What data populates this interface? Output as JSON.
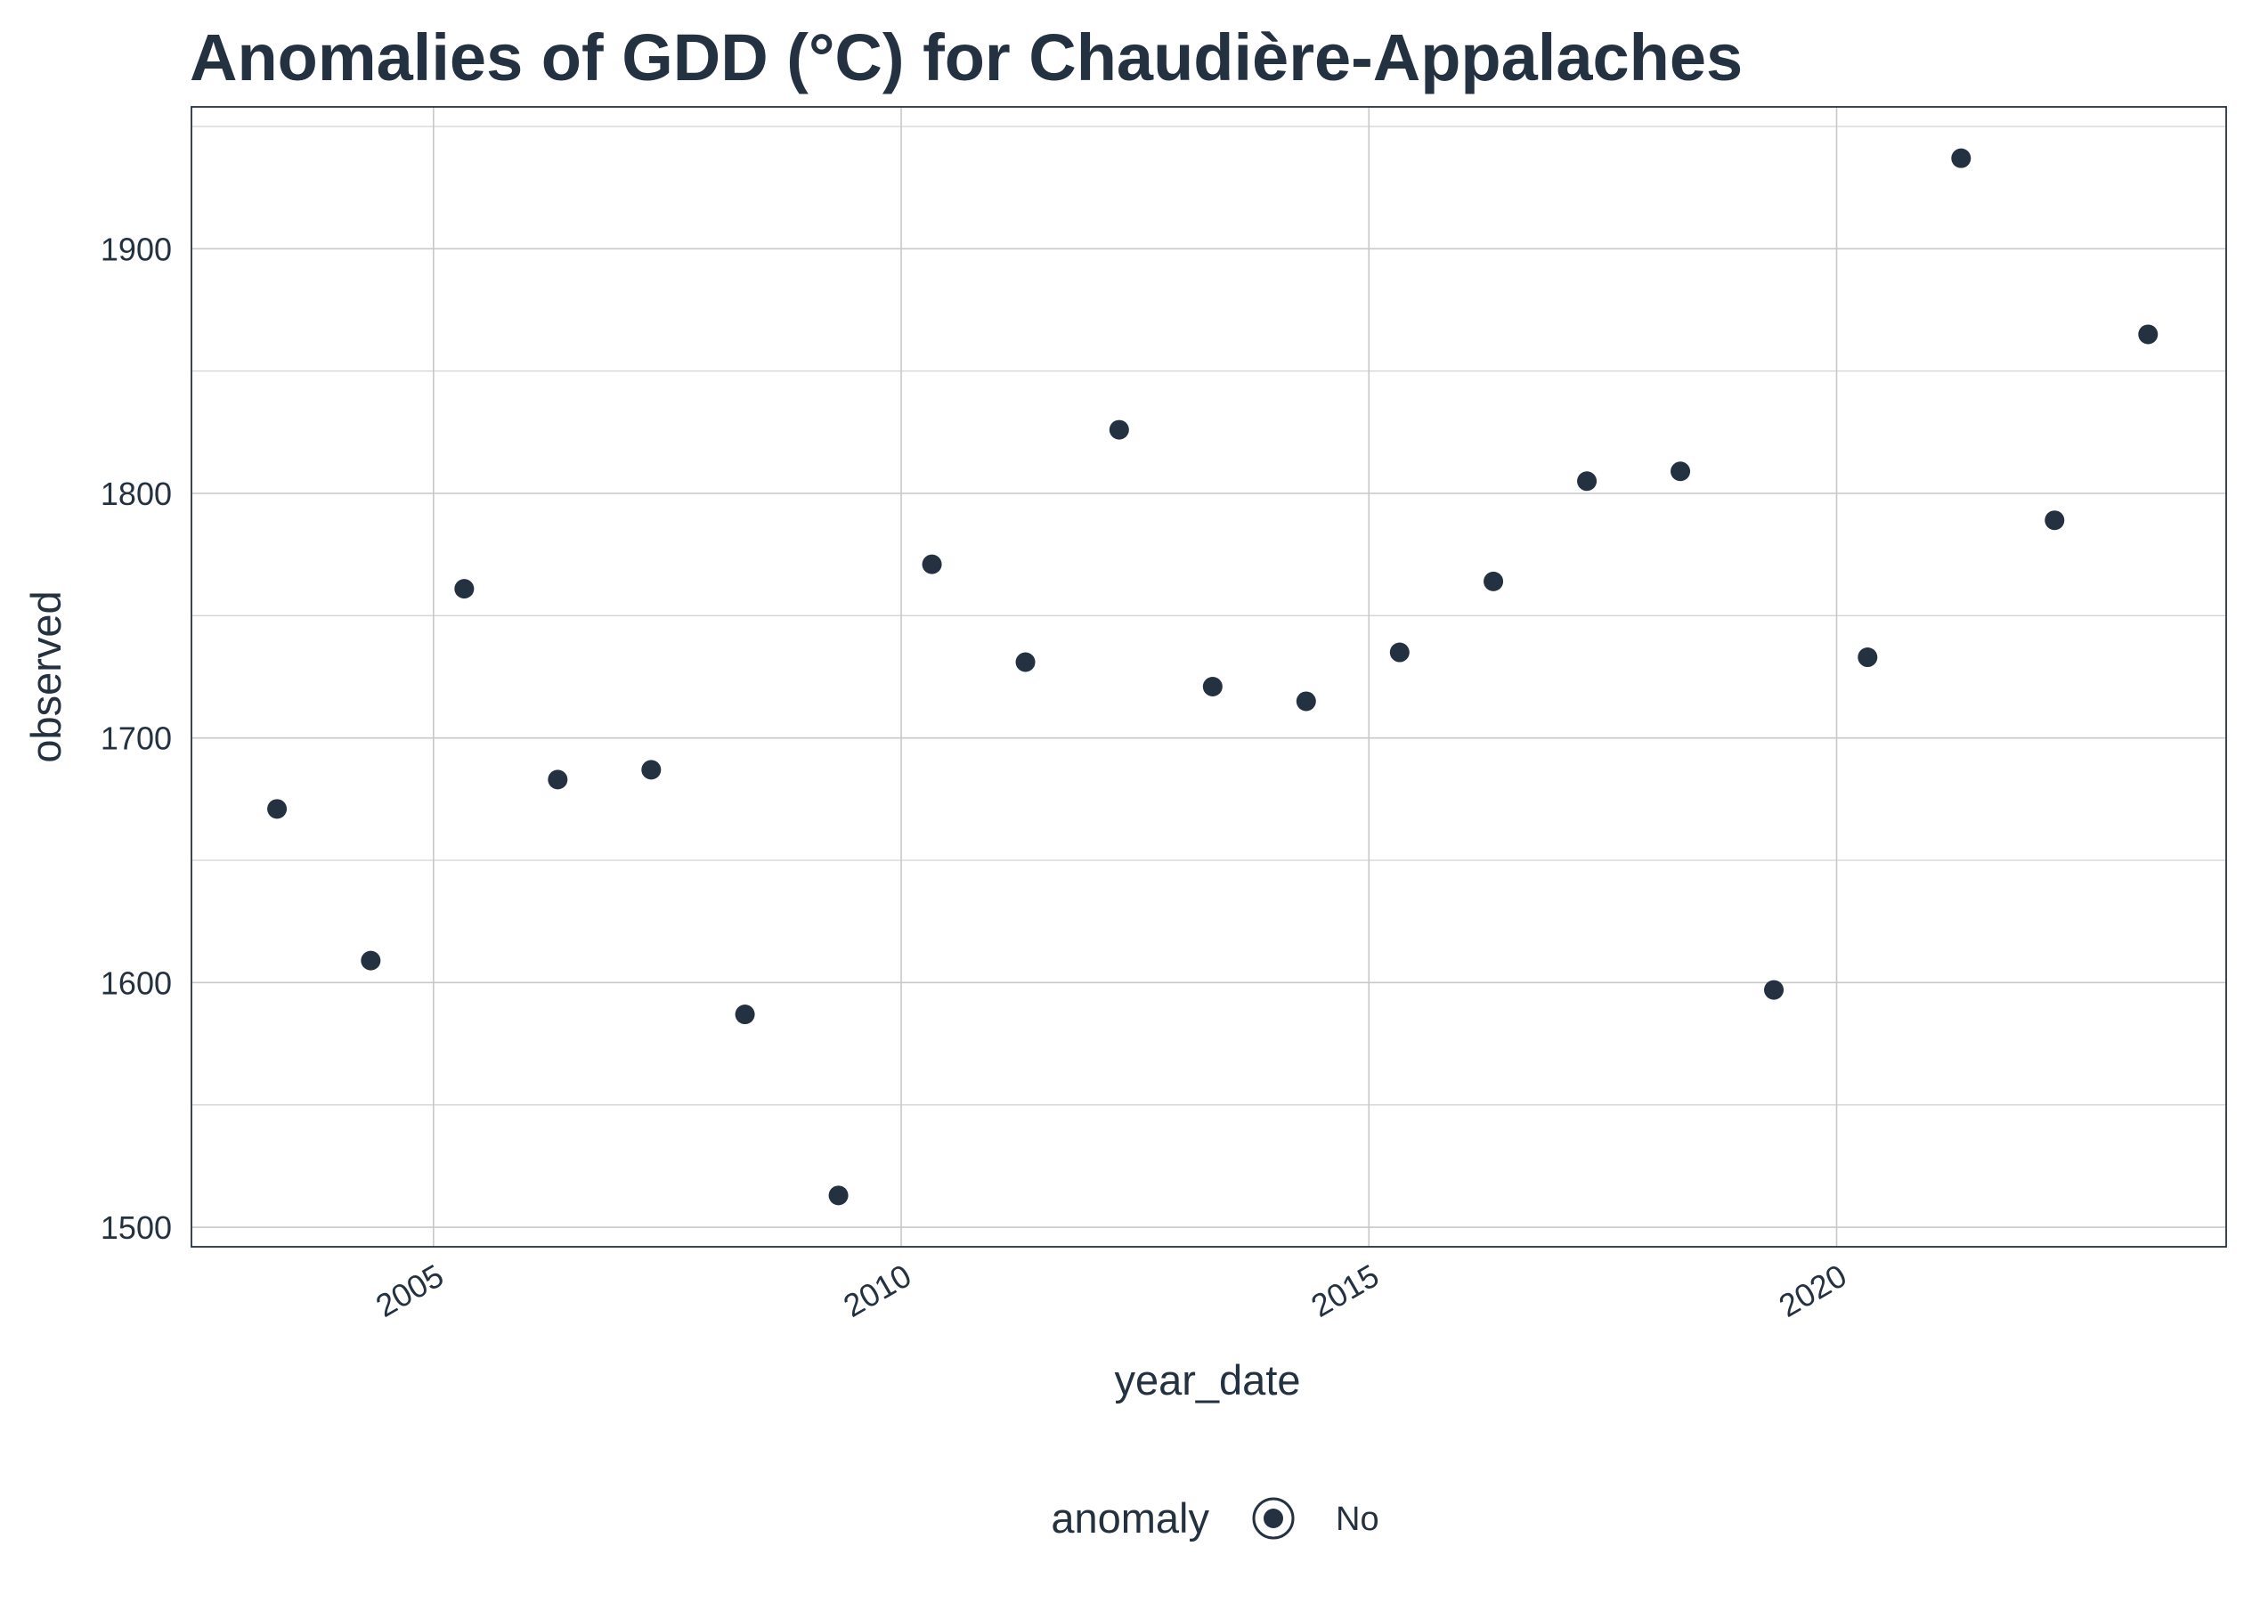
{
  "chart_data": {
    "type": "scatter",
    "title": "Anomalies of GDD (°C) for Chaudière-Appalaches",
    "xlabel": "year_date",
    "ylabel": "observed",
    "xlim": [
      "2002-06-01",
      "2024-03-01"
    ],
    "ylim": [
      1492,
      1958
    ],
    "x_ticks": [
      {
        "value": "2005-01-01",
        "label": "2005"
      },
      {
        "value": "2010-01-01",
        "label": "2010"
      },
      {
        "value": "2015-01-01",
        "label": "2015"
      },
      {
        "value": "2020-01-01",
        "label": "2020"
      }
    ],
    "y_ticks": [
      1500,
      1600,
      1700,
      1800,
      1900
    ],
    "grid": true,
    "legend": {
      "title": "anomaly",
      "position": "bottom",
      "entries": [
        "No"
      ]
    },
    "point_color": "#243140",
    "series": [
      {
        "name": "No",
        "points": [
          {
            "x": "2003-05-01",
            "y": 1671
          },
          {
            "x": "2004-05-01",
            "y": 1609
          },
          {
            "x": "2005-05-01",
            "y": 1761
          },
          {
            "x": "2006-05-01",
            "y": 1683
          },
          {
            "x": "2007-05-01",
            "y": 1687
          },
          {
            "x": "2008-05-01",
            "y": 1587
          },
          {
            "x": "2009-05-01",
            "y": 1513
          },
          {
            "x": "2010-05-01",
            "y": 1771
          },
          {
            "x": "2011-05-01",
            "y": 1731
          },
          {
            "x": "2012-05-01",
            "y": 1826
          },
          {
            "x": "2013-05-01",
            "y": 1721
          },
          {
            "x": "2014-05-01",
            "y": 1715
          },
          {
            "x": "2015-05-01",
            "y": 1735
          },
          {
            "x": "2016-05-01",
            "y": 1764
          },
          {
            "x": "2017-05-01",
            "y": 1805
          },
          {
            "x": "2018-05-01",
            "y": 1809
          },
          {
            "x": "2019-05-01",
            "y": 1597
          },
          {
            "x": "2020-05-01",
            "y": 1733
          },
          {
            "x": "2021-05-01",
            "y": 1937
          },
          {
            "x": "2022-05-01",
            "y": 1789
          },
          {
            "x": "2023-05-01",
            "y": 1865
          }
        ]
      }
    ]
  }
}
